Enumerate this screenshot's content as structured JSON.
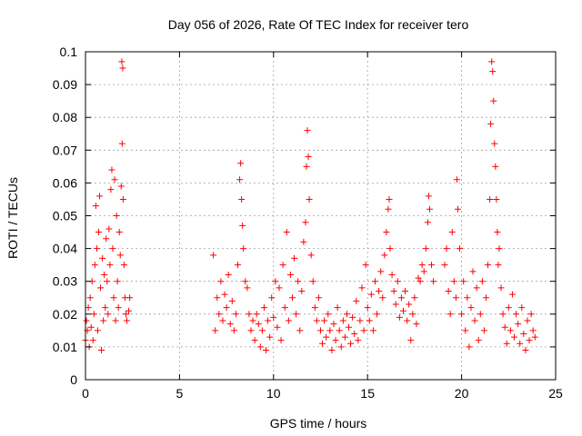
{
  "chart_data": {
    "type": "scatter",
    "title": "Day 056 of 2026, Rate Of TEC Index for receiver tero",
    "xlabel": "GPS time / hours",
    "ylabel": "ROTI / TECUs",
    "xlim": [
      0,
      25
    ],
    "ylim": [
      0,
      0.1
    ],
    "grid": true,
    "marker": "+",
    "colors": {
      "series": "#ff0000",
      "axes": "#000000",
      "grid": "#a0a0a0"
    },
    "xticks": [
      {
        "v": 0,
        "label": "0"
      },
      {
        "v": 5,
        "label": "5"
      },
      {
        "v": 10,
        "label": "10"
      },
      {
        "v": 15,
        "label": "15"
      },
      {
        "v": 20,
        "label": "20"
      },
      {
        "v": 25,
        "label": "25"
      }
    ],
    "yticks": [
      {
        "v": 0,
        "label": "0"
      },
      {
        "v": 0.01,
        "label": "0.01"
      },
      {
        "v": 0.02,
        "label": "0.02"
      },
      {
        "v": 0.03,
        "label": "0.03"
      },
      {
        "v": 0.04,
        "label": "0.04"
      },
      {
        "v": 0.05,
        "label": "0.05"
      },
      {
        "v": 0.06,
        "label": "0.06"
      },
      {
        "v": 0.07,
        "label": "0.07"
      },
      {
        "v": 0.08,
        "label": "0.08"
      },
      {
        "v": 0.09,
        "label": "0.09"
      },
      {
        "v": 0.1,
        "label": "0.1"
      }
    ],
    "series": [
      {
        "name": "ROTI",
        "points": [
          [
            0.0,
            0.012
          ],
          [
            0.05,
            0.018
          ],
          [
            0.1,
            0.015
          ],
          [
            0.15,
            0.022
          ],
          [
            0.2,
            0.01
          ],
          [
            0.25,
            0.025
          ],
          [
            0.3,
            0.016
          ],
          [
            0.35,
            0.03
          ],
          [
            0.4,
            0.012
          ],
          [
            0.45,
            0.02
          ],
          [
            0.5,
            0.035
          ],
          [
            0.55,
            0.053
          ],
          [
            0.6,
            0.04
          ],
          [
            0.65,
            0.015
          ],
          [
            0.7,
            0.045
          ],
          [
            0.75,
            0.056
          ],
          [
            0.8,
            0.028
          ],
          [
            0.85,
            0.009
          ],
          [
            0.9,
            0.037
          ],
          [
            0.95,
            0.018
          ],
          [
            1.0,
            0.032
          ],
          [
            1.05,
            0.022
          ],
          [
            1.1,
            0.043
          ],
          [
            1.15,
            0.03
          ],
          [
            1.2,
            0.02
          ],
          [
            1.25,
            0.046
          ],
          [
            1.3,
            0.035
          ],
          [
            1.35,
            0.058
          ],
          [
            1.4,
            0.064
          ],
          [
            1.45,
            0.04
          ],
          [
            1.5,
            0.025
          ],
          [
            1.55,
            0.061
          ],
          [
            1.6,
            0.018
          ],
          [
            1.65,
            0.05
          ],
          [
            1.7,
            0.03
          ],
          [
            1.75,
            0.022
          ],
          [
            1.8,
            0.045
          ],
          [
            1.85,
            0.038
          ],
          [
            1.9,
            0.059
          ],
          [
            1.93,
            0.097
          ],
          [
            1.95,
            0.072
          ],
          [
            1.98,
            0.095
          ],
          [
            2.0,
            0.055
          ],
          [
            2.05,
            0.035
          ],
          [
            2.1,
            0.025
          ],
          [
            2.15,
            0.02
          ],
          [
            2.2,
            0.018
          ],
          [
            2.3,
            0.021
          ],
          [
            2.35,
            0.025
          ],
          [
            6.8,
            0.038
          ],
          [
            6.9,
            0.015
          ],
          [
            7.0,
            0.025
          ],
          [
            7.1,
            0.02
          ],
          [
            7.2,
            0.03
          ],
          [
            7.3,
            0.018
          ],
          [
            7.4,
            0.026
          ],
          [
            7.5,
            0.022
          ],
          [
            7.6,
            0.032
          ],
          [
            7.7,
            0.017
          ],
          [
            7.8,
            0.024
          ],
          [
            7.9,
            0.015
          ],
          [
            8.0,
            0.02
          ],
          [
            8.1,
            0.035
          ],
          [
            8.2,
            0.061
          ],
          [
            8.25,
            0.066
          ],
          [
            8.3,
            0.055
          ],
          [
            8.35,
            0.047
          ],
          [
            8.4,
            0.04
          ],
          [
            8.5,
            0.03
          ],
          [
            8.6,
            0.028
          ],
          [
            8.7,
            0.02
          ],
          [
            8.8,
            0.015
          ],
          [
            8.9,
            0.018
          ],
          [
            9.0,
            0.012
          ],
          [
            9.1,
            0.02
          ],
          [
            9.2,
            0.017
          ],
          [
            9.3,
            0.01
          ],
          [
            9.4,
            0.015
          ],
          [
            9.5,
            0.022
          ],
          [
            9.6,
            0.009
          ],
          [
            9.7,
            0.018
          ],
          [
            9.8,
            0.013
          ],
          [
            9.9,
            0.025
          ],
          [
            10.0,
            0.019
          ],
          [
            10.1,
            0.03
          ],
          [
            10.2,
            0.016
          ],
          [
            10.3,
            0.028
          ],
          [
            10.4,
            0.012
          ],
          [
            10.5,
            0.035
          ],
          [
            10.6,
            0.022
          ],
          [
            10.7,
            0.045
          ],
          [
            10.8,
            0.018
          ],
          [
            10.9,
            0.032
          ],
          [
            11.0,
            0.025
          ],
          [
            11.1,
            0.037
          ],
          [
            11.2,
            0.02
          ],
          [
            11.3,
            0.03
          ],
          [
            11.4,
            0.015
          ],
          [
            11.5,
            0.027
          ],
          [
            11.6,
            0.042
          ],
          [
            11.7,
            0.048
          ],
          [
            11.75,
            0.065
          ],
          [
            11.8,
            0.076
          ],
          [
            11.85,
            0.068
          ],
          [
            11.9,
            0.055
          ],
          [
            12.0,
            0.038
          ],
          [
            12.1,
            0.03
          ],
          [
            12.2,
            0.022
          ],
          [
            12.3,
            0.018
          ],
          [
            12.4,
            0.025
          ],
          [
            12.5,
            0.015
          ],
          [
            12.6,
            0.011
          ],
          [
            12.7,
            0.018
          ],
          [
            12.8,
            0.013
          ],
          [
            12.9,
            0.02
          ],
          [
            13.0,
            0.015
          ],
          [
            13.1,
            0.009
          ],
          [
            13.2,
            0.017
          ],
          [
            13.3,
            0.012
          ],
          [
            13.4,
            0.022
          ],
          [
            13.5,
            0.015
          ],
          [
            13.6,
            0.01
          ],
          [
            13.7,
            0.018
          ],
          [
            13.8,
            0.013
          ],
          [
            13.9,
            0.02
          ],
          [
            14.0,
            0.016
          ],
          [
            14.1,
            0.011
          ],
          [
            14.2,
            0.019
          ],
          [
            14.3,
            0.014
          ],
          [
            14.4,
            0.024
          ],
          [
            14.5,
            0.012
          ],
          [
            14.6,
            0.018
          ],
          [
            14.7,
            0.028
          ],
          [
            14.8,
            0.015
          ],
          [
            14.9,
            0.035
          ],
          [
            15.0,
            0.022
          ],
          [
            15.1,
            0.018
          ],
          [
            15.2,
            0.026
          ],
          [
            15.3,
            0.015
          ],
          [
            15.4,
            0.03
          ],
          [
            15.5,
            0.02
          ],
          [
            15.6,
            0.027
          ],
          [
            15.7,
            0.033
          ],
          [
            15.8,
            0.025
          ],
          [
            15.9,
            0.038
          ],
          [
            16.0,
            0.045
          ],
          [
            16.1,
            0.052
          ],
          [
            16.15,
            0.055
          ],
          [
            16.2,
            0.04
          ],
          [
            16.3,
            0.032
          ],
          [
            16.4,
            0.027
          ],
          [
            16.5,
            0.023
          ],
          [
            16.6,
            0.03
          ],
          [
            16.7,
            0.019
          ],
          [
            16.8,
            0.025
          ],
          [
            16.9,
            0.021
          ],
          [
            17.0,
            0.027
          ],
          [
            17.1,
            0.018
          ],
          [
            17.2,
            0.023
          ],
          [
            17.3,
            0.012
          ],
          [
            17.4,
            0.02
          ],
          [
            17.5,
            0.025
          ],
          [
            17.6,
            0.017
          ],
          [
            17.7,
            0.031
          ],
          [
            17.8,
            0.03
          ],
          [
            17.9,
            0.035
          ],
          [
            18.0,
            0.033
          ],
          [
            18.1,
            0.04
          ],
          [
            18.2,
            0.048
          ],
          [
            18.25,
            0.056
          ],
          [
            18.3,
            0.052
          ],
          [
            18.4,
            0.035
          ],
          [
            18.5,
            0.03
          ],
          [
            19.1,
            0.035
          ],
          [
            19.2,
            0.04
          ],
          [
            19.3,
            0.027
          ],
          [
            19.4,
            0.02
          ],
          [
            19.5,
            0.045
          ],
          [
            19.6,
            0.03
          ],
          [
            19.7,
            0.025
          ],
          [
            19.75,
            0.061
          ],
          [
            19.8,
            0.052
          ],
          [
            19.9,
            0.04
          ],
          [
            20.0,
            0.02
          ],
          [
            20.1,
            0.03
          ],
          [
            20.2,
            0.015
          ],
          [
            20.3,
            0.025
          ],
          [
            20.4,
            0.01
          ],
          [
            20.5,
            0.022
          ],
          [
            20.6,
            0.033
          ],
          [
            20.7,
            0.018
          ],
          [
            20.8,
            0.028
          ],
          [
            20.9,
            0.012
          ],
          [
            21.0,
            0.02
          ],
          [
            21.1,
            0.03
          ],
          [
            21.2,
            0.015
          ],
          [
            21.3,
            0.025
          ],
          [
            21.4,
            0.035
          ],
          [
            21.5,
            0.055
          ],
          [
            21.55,
            0.078
          ],
          [
            21.6,
            0.097
          ],
          [
            21.65,
            0.094
          ],
          [
            21.7,
            0.085
          ],
          [
            21.75,
            0.072
          ],
          [
            21.8,
            0.065
          ],
          [
            21.85,
            0.055
          ],
          [
            21.9,
            0.045
          ],
          [
            21.95,
            0.035
          ],
          [
            22.0,
            0.04
          ],
          [
            22.1,
            0.028
          ],
          [
            22.2,
            0.02
          ],
          [
            22.3,
            0.016
          ],
          [
            22.4,
            0.011
          ],
          [
            22.5,
            0.022
          ],
          [
            22.6,
            0.015
          ],
          [
            22.7,
            0.026
          ],
          [
            22.8,
            0.013
          ],
          [
            22.9,
            0.02
          ],
          [
            23.0,
            0.017
          ],
          [
            23.1,
            0.011
          ],
          [
            23.2,
            0.022
          ],
          [
            23.3,
            0.014
          ],
          [
            23.4,
            0.009
          ],
          [
            23.5,
            0.018
          ],
          [
            23.6,
            0.012
          ],
          [
            23.7,
            0.02
          ],
          [
            23.8,
            0.015
          ],
          [
            23.9,
            0.013
          ]
        ]
      }
    ]
  }
}
